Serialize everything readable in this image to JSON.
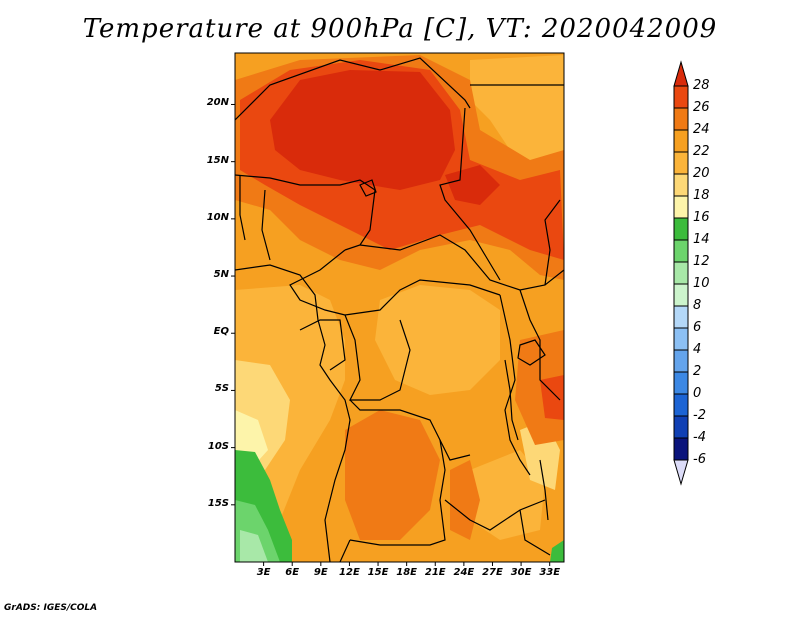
{
  "title": "Temperature at 900hPa [C], VT: 2020042009",
  "credit": "GrADS: IGES/COLA",
  "map": {
    "lat_labels": [
      "20N",
      "15N",
      "10N",
      "5N",
      "EQ",
      "5S",
      "10S",
      "15S"
    ],
    "lat_values": [
      20,
      15,
      10,
      5,
      0,
      -5,
      -10,
      -15
    ],
    "lon_labels": [
      "3E",
      "6E",
      "9E",
      "12E",
      "15E",
      "18E",
      "21E",
      "24E",
      "27E",
      "30E",
      "33E"
    ],
    "lon_values": [
      3,
      6,
      9,
      12,
      15,
      18,
      21,
      24,
      27,
      30,
      33
    ],
    "lon_range": [
      0,
      34.5
    ],
    "lat_range": [
      -20,
      24.5
    ]
  },
  "colorbar": {
    "labels": [
      "28",
      "26",
      "24",
      "22",
      "20",
      "18",
      "16",
      "14",
      "12",
      "10",
      "8",
      "6",
      "4",
      "2",
      "0",
      "-2",
      "-4",
      "-6"
    ],
    "colors": [
      "#d92b0b",
      "#ea4810",
      "#f07a15",
      "#f6a021",
      "#fbb43a",
      "#fdd877",
      "#fdf4aa",
      "#3cbc3c",
      "#6cd46c",
      "#a8e8a8",
      "#ccf4cc",
      "#b4d8f8",
      "#8cc0f4",
      "#64a4ec",
      "#3c88e4",
      "#1c64d4",
      "#1040b4",
      "#0a147c"
    ]
  }
}
